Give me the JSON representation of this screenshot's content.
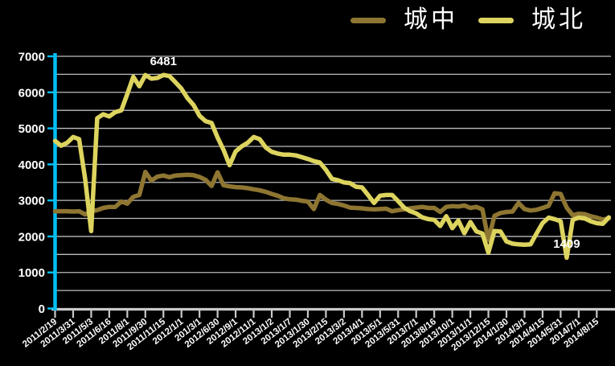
{
  "background_color": "#000000",
  "legend": {
    "items": [
      {
        "label": "城中",
        "color": "#8E7632"
      },
      {
        "label": "城北",
        "color": "#DDD45F"
      }
    ]
  },
  "chart_data": {
    "type": "line",
    "title": "",
    "xlabel": "",
    "ylabel": "",
    "grid": true,
    "legend_position": "top-right",
    "x_tick_labels": [
      "2011/2/19",
      "2011/3/31",
      "2011/5/3",
      "2011/6/16",
      "2011/8/1",
      "2011/9/30",
      "2011/11/15",
      "2012/1/1",
      "201/3/1",
      "2012/6/30",
      "2012/9/1",
      "2012/11/1",
      "2013/1/2",
      "2013/1/7",
      "2013/1/30",
      "2013/2/15",
      "2013/3/2",
      "2013/4/1",
      "2013/5/1",
      "2013/5/31",
      "2013/7/1",
      "2013/8/16",
      "2013/10/1",
      "2013/11/1",
      "2013/12/15",
      "2014/1/30",
      "2014/3/1",
      "2014/4/15",
      "2014/5/31",
      "2014/7/1",
      "2014/8/15"
    ],
    "points_per_tick_interval": 3,
    "y_axis": {
      "min": 0,
      "max": 7000,
      "major_step": 1000,
      "grid_step": 500,
      "tick_labels": [
        "0",
        "1000",
        "2000",
        "3000",
        "4000",
        "5000",
        "6000",
        "7000"
      ]
    },
    "series": [
      {
        "name": "城中",
        "color": "#8E7632",
        "values": [
          2700,
          2700,
          2700,
          2690,
          2700,
          2610,
          2700,
          2730,
          2790,
          2820,
          2820,
          2970,
          2910,
          3100,
          3150,
          3790,
          3550,
          3660,
          3690,
          3645,
          3690,
          3700,
          3710,
          3700,
          3650,
          3570,
          3400,
          3780,
          3420,
          3390,
          3370,
          3360,
          3340,
          3310,
          3280,
          3240,
          3180,
          3130,
          3060,
          3030,
          3020,
          2990,
          2970,
          2760,
          3150,
          3020,
          2930,
          2900,
          2860,
          2800,
          2790,
          2780,
          2760,
          2750,
          2760,
          2770,
          2700,
          2730,
          2750,
          2780,
          2800,
          2820,
          2790,
          2790,
          2680,
          2820,
          2840,
          2830,
          2860,
          2790,
          2820,
          2750,
          1900,
          2570,
          2650,
          2680,
          2690,
          2930,
          2760,
          2720,
          2740,
          2790,
          2850,
          3200,
          3180,
          2800,
          2590,
          2630,
          2620,
          2560,
          2520,
          2470,
          2500
        ]
      },
      {
        "name": "城北",
        "color": "#DDD45F",
        "values": [
          4650,
          4520,
          4600,
          4760,
          4700,
          3600,
          2150,
          5280,
          5390,
          5330,
          5450,
          5500,
          5950,
          6430,
          6170,
          6480,
          6380,
          6400,
          6481,
          6450,
          6280,
          6100,
          5840,
          5650,
          5350,
          5200,
          5150,
          4750,
          4400,
          3980,
          4360,
          4500,
          4600,
          4760,
          4700,
          4470,
          4350,
          4300,
          4270,
          4270,
          4250,
          4200,
          4150,
          4090,
          4050,
          3850,
          3600,
          3560,
          3500,
          3480,
          3380,
          3360,
          3150,
          2930,
          3130,
          3150,
          3150,
          2980,
          2800,
          2700,
          2640,
          2530,
          2480,
          2460,
          2290,
          2560,
          2230,
          2440,
          2090,
          2400,
          2140,
          2080,
          1550,
          2150,
          2140,
          1860,
          1800,
          1780,
          1770,
          1780,
          2080,
          2370,
          2520,
          2480,
          2420,
          1409,
          2460,
          2520,
          2500,
          2420,
          2370,
          2350,
          2530
        ]
      }
    ],
    "annotations": [
      {
        "text": "6481",
        "series": "城北",
        "point_index": 18
      },
      {
        "text": "1409",
        "series": "城北",
        "point_index": 85
      }
    ],
    "colors": {
      "y_axis": "#00BEF2",
      "x_axis": "#C9C9C9",
      "gridline": "#BDBDBD",
      "label_text": "#FFFFFF"
    }
  }
}
